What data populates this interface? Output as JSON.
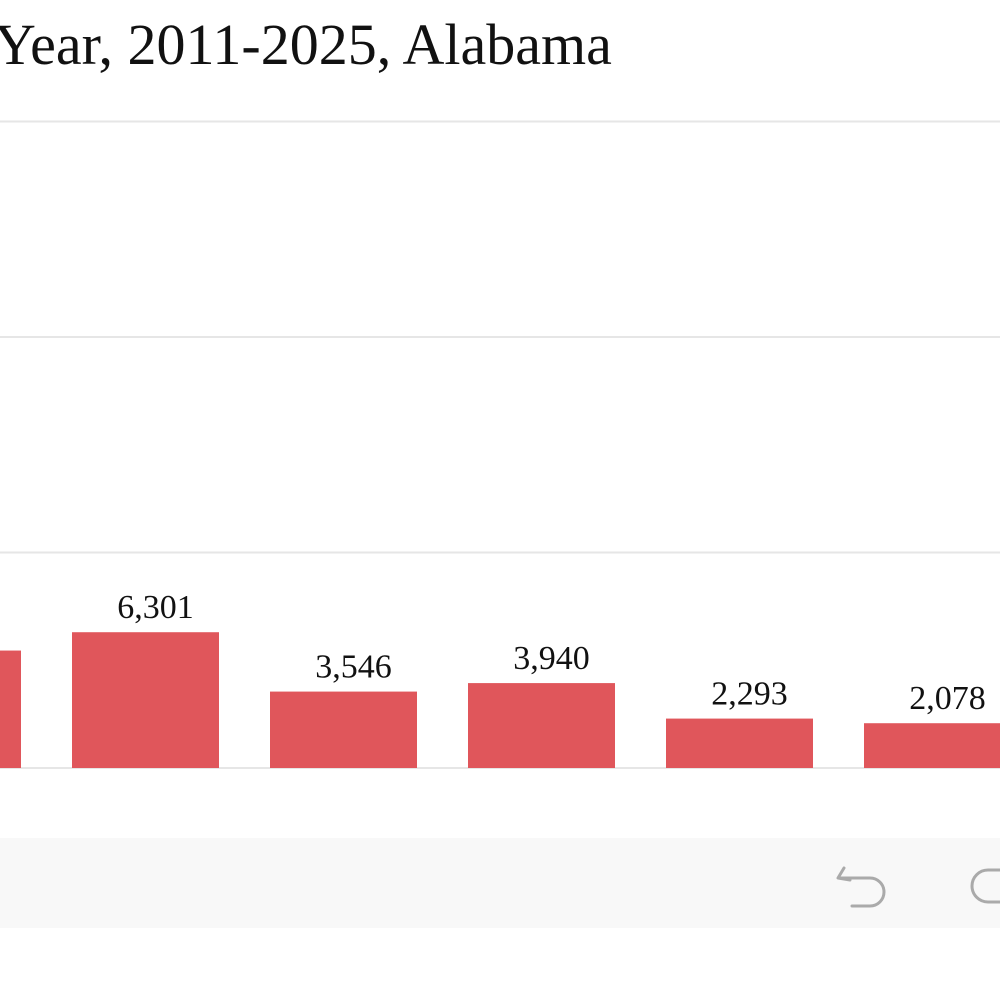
{
  "title": "Year, 2011-2025, Alabama",
  "chart_data": {
    "type": "bar",
    "values": [
      5450,
      6301,
      3546,
      3940,
      2293,
      2078
    ],
    "labels": [
      "",
      "6,301",
      "3,546",
      "3,940",
      "2,293",
      "2,078"
    ],
    "ylim": [
      0,
      10000
    ],
    "bar_color": "#e0565b",
    "grid": true,
    "gridline_color": "#e6e6e6"
  },
  "toolbar": {
    "background": "#f8f8f8",
    "icons": [
      "undo-icon",
      "more-icon"
    ]
  }
}
